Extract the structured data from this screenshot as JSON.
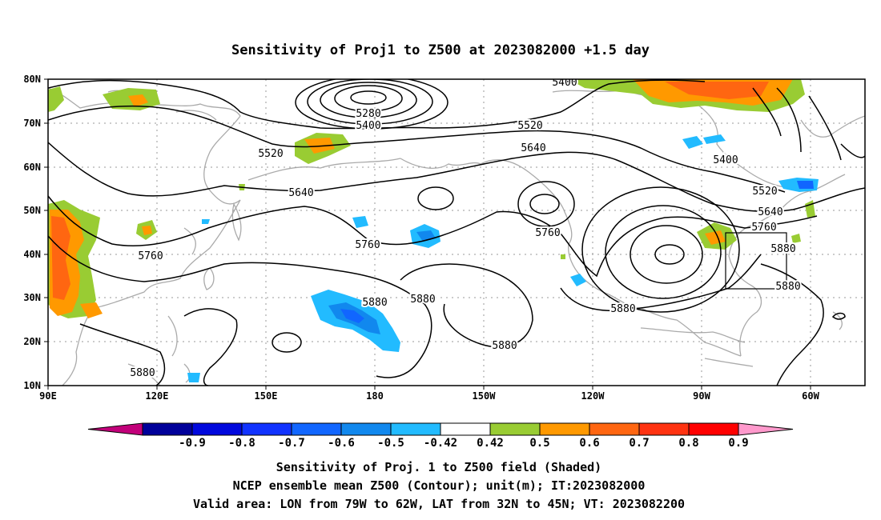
{
  "title": "Sensitivity of Proj1 to Z500 at 2023082000 +1.5 day",
  "lat_ticks": [
    "80N",
    "70N",
    "60N",
    "50N",
    "40N",
    "30N",
    "20N",
    "10N"
  ],
  "lon_ticks": [
    "90E",
    "120E",
    "150E",
    "180",
    "150W",
    "120W",
    "90W",
    "60W"
  ],
  "contour_labels": [
    "5400",
    "5280",
    "5400",
    "5520",
    "5640",
    "5520",
    "5640",
    "5760",
    "5400",
    "5520",
    "5640",
    "5760",
    "5880",
    "5760",
    "5760",
    "5880",
    "5880",
    "5880",
    "5880",
    "5880",
    "5880"
  ],
  "colorbar": {
    "labels": [
      "-0.9",
      "-0.8",
      "-0.7",
      "-0.6",
      "-0.5",
      "-0.42",
      "0.42",
      "0.5",
      "0.6",
      "0.7",
      "0.8",
      "0.9"
    ],
    "colors": [
      "#c2007a",
      "#00009a",
      "#0008dd",
      "#1133ff",
      "#1166ff",
      "#1188ee",
      "#22bbff",
      "#ffffff",
      "#99cc33",
      "#ff9900",
      "#ff6611",
      "#ff3311",
      "#ff0000",
      "#ff99cc"
    ]
  },
  "captions": [
    "Sensitivity of Proj. 1 to Z500 field (Shaded)",
    "NCEP ensemble mean Z500 (Contour); unit(m); IT:2023082000",
    "Valid area: LON from 79W to 62W, LAT from 32N to 45N; VT: 2023082200"
  ]
}
